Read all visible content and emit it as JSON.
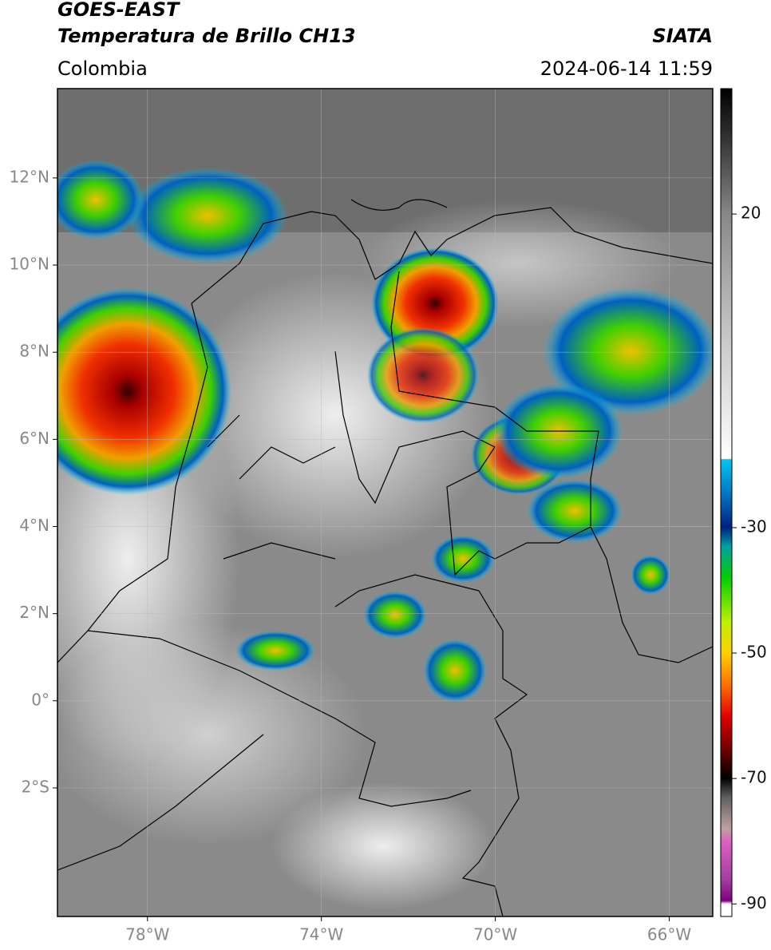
{
  "chart_data": {
    "type": "map",
    "title": "GOES-EAST",
    "subtitle": "Temperatura de Brillo CH13",
    "source": "SIATA",
    "region": "Colombia",
    "datetime": "2024-06-14 11:59",
    "xlim": [
      -80.07,
      -65.0
    ],
    "ylim": [
      -4.95,
      14.05
    ],
    "xticks": [
      {
        "value": -78,
        "label": "78°W"
      },
      {
        "value": -74,
        "label": "74°W"
      },
      {
        "value": -70,
        "label": "70°W"
      },
      {
        "value": -66,
        "label": "66°W"
      }
    ],
    "yticks": [
      {
        "value": 12,
        "label": "12°N"
      },
      {
        "value": 10,
        "label": "10°N"
      },
      {
        "value": 8,
        "label": "8°N"
      },
      {
        "value": 6,
        "label": "6°N"
      },
      {
        "value": 4,
        "label": "4°N"
      },
      {
        "value": 2,
        "label": "2°N"
      },
      {
        "value": 0,
        "label": "0°"
      },
      {
        "value": -2,
        "label": "2°S"
      }
    ],
    "grid": true,
    "clim": [
      -92,
      40
    ],
    "cticks": [
      20,
      -30,
      -50,
      -70,
      -90
    ]
  }
}
